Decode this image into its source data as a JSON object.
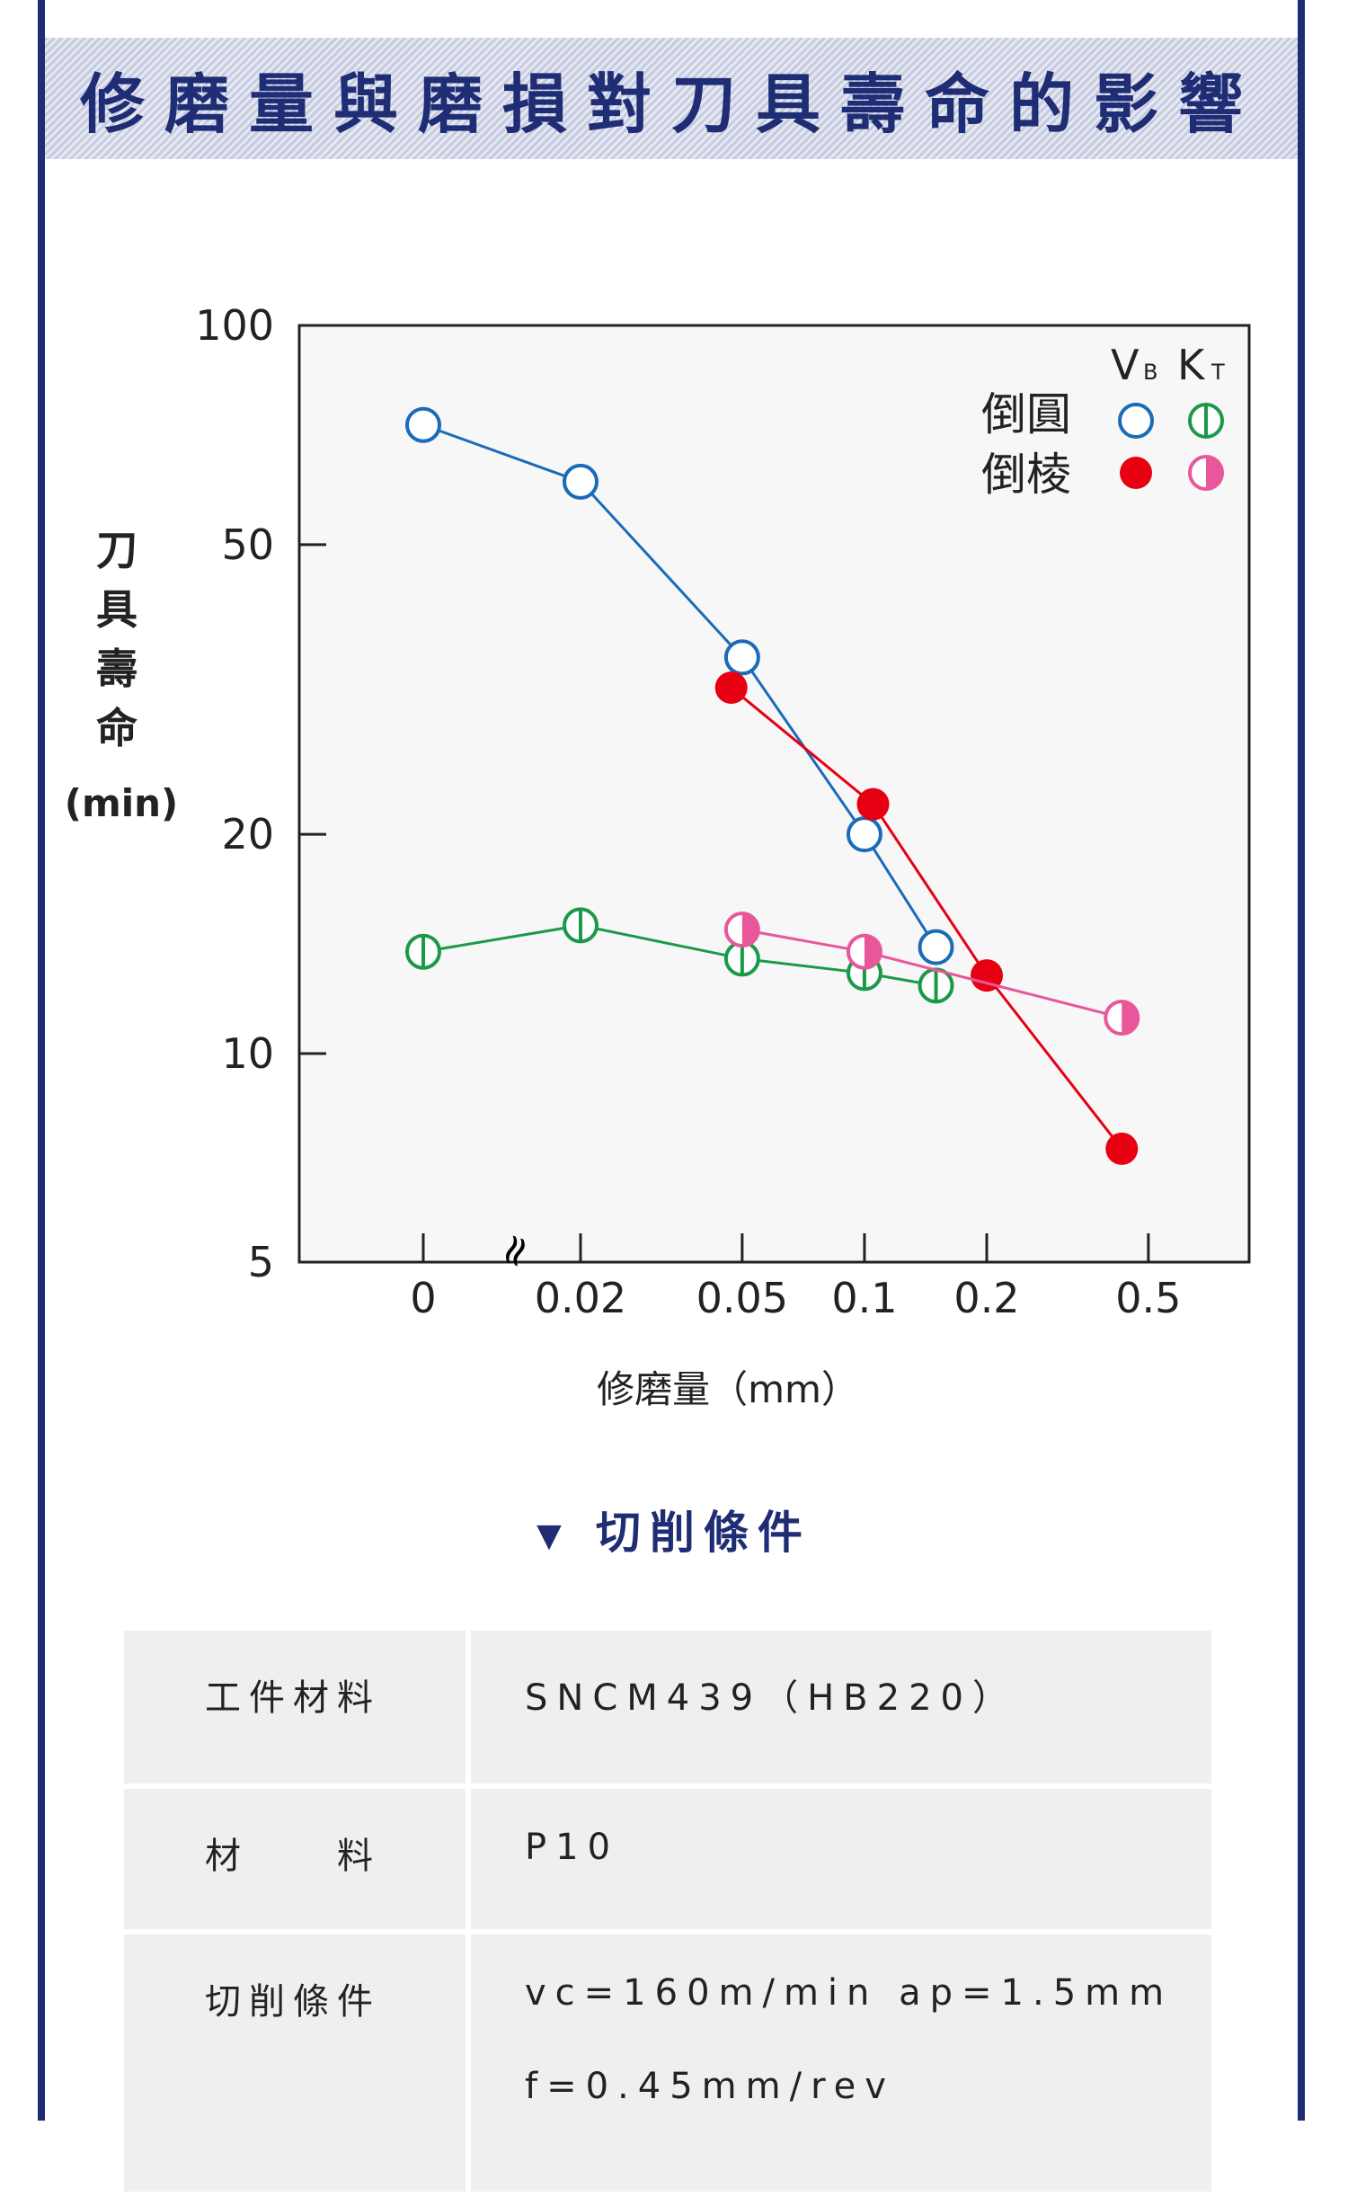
{
  "title": "修磨量與磨損對刀具壽命的影響",
  "chart_data": {
    "type": "line",
    "title": "修磨量與磨損對刀具壽命的影響",
    "xlabel": "修磨量（mm）",
    "ylabel_chars": [
      "刀",
      "具",
      "壽",
      "命"
    ],
    "ylabel_unit": "(min)",
    "yscale": "log",
    "ylim": [
      5,
      100
    ],
    "yticks": [
      100,
      50,
      20,
      10,
      5
    ],
    "xscale": "log (with axis break after 0)",
    "xticks": [
      0,
      0.02,
      0.05,
      0.1,
      0.2,
      0.5
    ],
    "xtick_labels": [
      "0",
      "0.02",
      "0.05",
      "0.1",
      "0.2",
      "0.5"
    ],
    "legend": {
      "placement": "top-right",
      "col_VB": "V",
      "col_VB_sub": "B",
      "col_KT": "K",
      "col_KT_sub": "T",
      "row_round": "倒圓",
      "row_chamfer": "倒棱"
    },
    "series": [
      {
        "name": "倒圓 VB",
        "color": "#1a6bb8",
        "marker": "open",
        "x": [
          0,
          0.02,
          0.05,
          0.1,
          0.15
        ],
        "y": [
          73,
          61,
          35,
          20,
          14
        ]
      },
      {
        "name": "倒棱 VB",
        "color": "#e60012",
        "marker": "filled",
        "x": [
          0.047,
          0.105,
          0.2,
          0.43
        ],
        "y": [
          31.8,
          22,
          12.8,
          7.4
        ]
      },
      {
        "name": "倒圓 KT",
        "color": "#1a9a48",
        "marker": "vline",
        "x": [
          0,
          0.02,
          0.05,
          0.1,
          0.15
        ],
        "y": [
          13.8,
          15,
          13.5,
          12.9,
          12.4
        ]
      },
      {
        "name": "倒棱 KT",
        "color": "#e8579a",
        "marker": "half",
        "x": [
          0.05,
          0.1,
          0.43
        ],
        "y": [
          14.8,
          13.8,
          11.2
        ]
      }
    ]
  },
  "conditions": {
    "heading": "切削條件",
    "rows": [
      {
        "key": "工件材料",
        "value": "SNCM439（HB220）"
      },
      {
        "key": "材　　料",
        "value": "P10"
      },
      {
        "key": "切削條件",
        "value": "vc=160m/min ap=1.5mm",
        "value2": "f=0.45mm/rev"
      }
    ]
  }
}
